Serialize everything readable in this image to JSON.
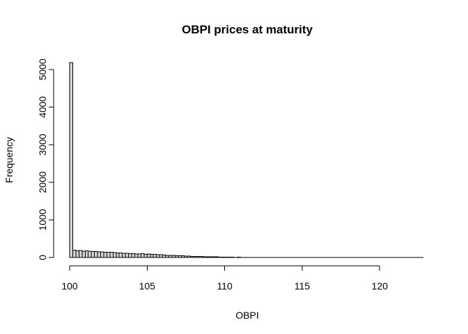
{
  "chart_data": {
    "type": "bar",
    "title": "OBPI prices at maturity",
    "xlabel": "OBPI",
    "ylabel": "Frequency",
    "xlim": [
      100,
      123
    ],
    "ylim": [
      0,
      5200
    ],
    "x_ticks": [
      "100",
      "105",
      "110",
      "115",
      "120"
    ],
    "y_ticks": [
      "0",
      "1000",
      "2000",
      "3000",
      "4000",
      "5000"
    ],
    "bin_start": 100,
    "bin_width": 0.2,
    "values": [
      5180,
      190,
      175,
      185,
      170,
      180,
      165,
      155,
      160,
      150,
      145,
      140,
      135,
      140,
      130,
      125,
      120,
      115,
      110,
      105,
      100,
      95,
      90,
      100,
      85,
      90,
      80,
      85,
      75,
      70,
      65,
      60,
      60,
      55,
      50,
      45,
      45,
      40,
      35,
      30,
      30,
      25,
      25,
      20,
      20,
      18,
      15,
      15,
      12,
      12,
      10,
      10,
      8,
      3,
      12,
      2,
      1,
      1,
      1,
      1,
      1,
      1,
      1,
      1,
      1,
      1,
      1,
      1,
      1,
      1,
      1,
      1,
      1,
      1,
      1,
      1,
      1,
      1,
      1,
      1,
      1,
      1,
      1,
      1,
      1,
      1,
      1,
      1,
      1,
      1,
      1,
      1,
      1,
      1,
      1,
      1,
      1,
      1,
      1,
      1,
      1,
      1,
      1,
      1,
      1,
      1,
      1,
      1,
      1,
      1,
      1,
      1,
      1,
      1
    ],
    "grid": false,
    "bar_fill": "#d3d3d3",
    "bar_stroke": "#000000"
  }
}
